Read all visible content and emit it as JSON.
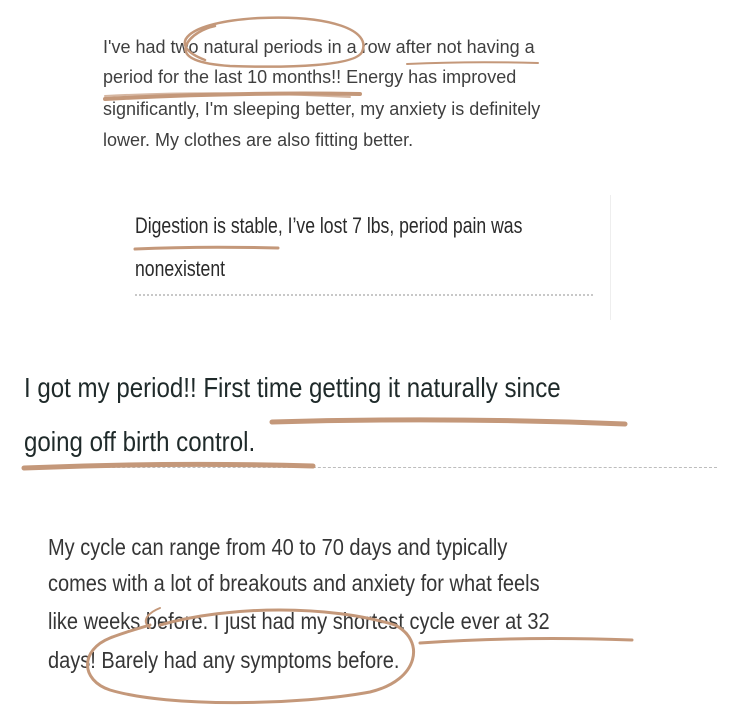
{
  "testimonials": [
    {
      "lines": [
        "I've had two natural periods in a row after not having a",
        "period for the last 10 months!! Energy has improved",
        "significantly, I'm sleeping better, my anxiety is definitely",
        "lower. My clothes are also fitting better."
      ]
    },
    {
      "lines": [
        "Digestion is stable, I’ve lost 7 lbs, period pain was",
        "nonexistent"
      ]
    },
    {
      "lines": [
        "I got my period!! First time getting it naturally since",
        "going off birth control."
      ]
    },
    {
      "lines": [
        "My cycle can range from 40 to 70 days and typically",
        "comes with a lot of breakouts and anxiety for what feels",
        "like weeks before. I just had my shortest cycle ever at 32",
        "days! Barely had any symptoms before."
      ]
    }
  ],
  "colors": {
    "annotation": "#c4987a"
  }
}
